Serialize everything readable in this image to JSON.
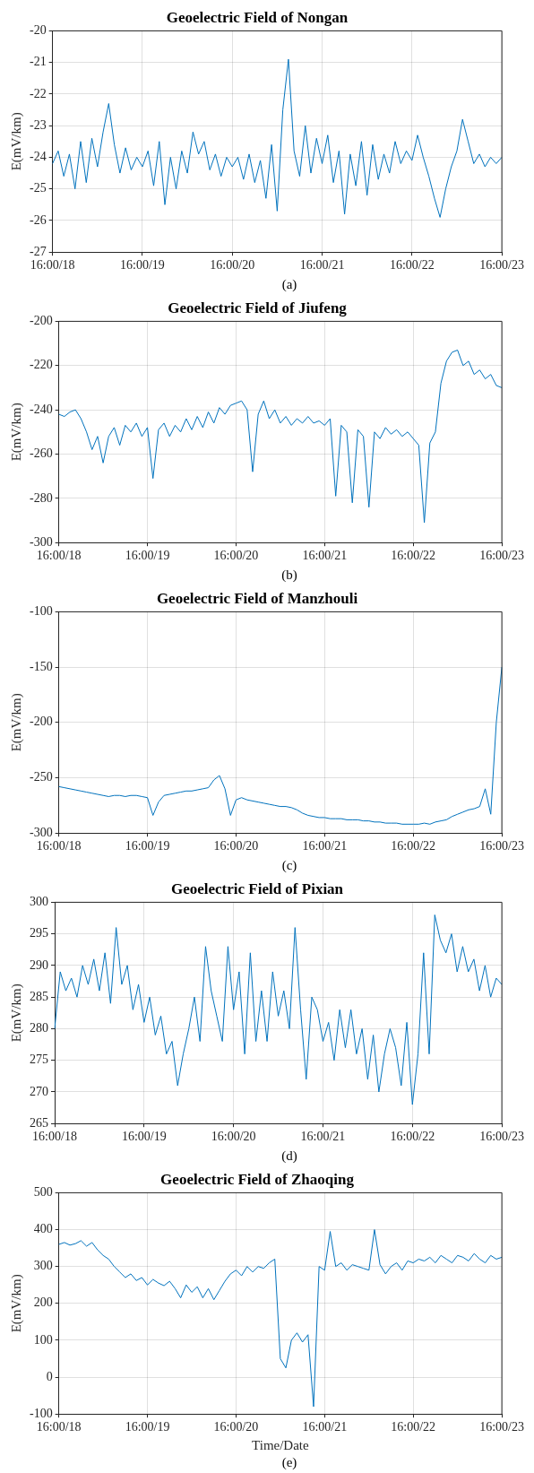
{
  "chart_data": [
    {
      "type": "line",
      "title": "Geoelectric Field of Nongan",
      "ylabel": "E(mV/km)",
      "annotations": [
        "(a)"
      ],
      "grid": true,
      "categories": [
        "16:00/18",
        null,
        null,
        null,
        null,
        null,
        null,
        null,
        null,
        null,
        null,
        null,
        null,
        null,
        null,
        null,
        "16:00/19",
        null,
        null,
        null,
        null,
        null,
        null,
        null,
        null,
        null,
        null,
        null,
        null,
        null,
        null,
        null,
        "16:00/20",
        null,
        null,
        null,
        null,
        null,
        null,
        null,
        null,
        null,
        null,
        null,
        null,
        null,
        null,
        null,
        "16:00/21",
        null,
        null,
        null,
        null,
        null,
        null,
        null,
        null,
        null,
        null,
        null,
        null,
        null,
        null,
        null,
        "16:00/22",
        null,
        null,
        null,
        null,
        null,
        null,
        null,
        null,
        null,
        null,
        null,
        null,
        null,
        null,
        null,
        "16:00/23"
      ],
      "ylim": [
        -27,
        -20
      ],
      "yticks": [
        -27,
        -26,
        -25,
        -24,
        -23,
        -22,
        -21,
        -20
      ],
      "series": [
        {
          "color": "#0072bd",
          "values": [
            -24.2,
            -23.8,
            -24.6,
            -23.9,
            -25.0,
            -23.5,
            -24.8,
            -23.4,
            -24.3,
            -23.2,
            -22.3,
            -23.6,
            -24.5,
            -23.7,
            -24.4,
            -24.0,
            -24.3,
            -23.8,
            -24.9,
            -23.5,
            -25.5,
            -24.0,
            -25.0,
            -23.8,
            -24.5,
            -23.2,
            -23.9,
            -23.5,
            -24.4,
            -23.9,
            -24.6,
            -24.0,
            -24.3,
            -24.0,
            -24.7,
            -23.9,
            -24.8,
            -24.1,
            -25.3,
            -23.6,
            -25.7,
            -22.5,
            -20.9,
            -23.8,
            -24.6,
            -23.0,
            -24.5,
            -23.4,
            -24.2,
            -23.3,
            -24.8,
            -23.8,
            -25.8,
            -23.9,
            -24.9,
            -23.5,
            -25.2,
            -23.6,
            -24.7,
            -23.9,
            -24.5,
            -23.5,
            -24.2,
            -23.8,
            -24.1,
            -23.3,
            -24.0,
            -24.6,
            -25.3,
            -25.9,
            -25.0,
            -24.3,
            -23.8,
            -22.8,
            -23.5,
            -24.2,
            -23.9,
            -24.3,
            -24.0,
            -24.2,
            -24.0
          ]
        }
      ]
    },
    {
      "type": "line",
      "title": "Geoelectric Field of Jiufeng",
      "ylabel": "E(mV/km)",
      "annotations": [
        "(b)"
      ],
      "grid": true,
      "categories": [
        "16:00/18",
        null,
        null,
        null,
        null,
        null,
        null,
        null,
        null,
        null,
        null,
        null,
        null,
        null,
        null,
        null,
        "16:00/19",
        null,
        null,
        null,
        null,
        null,
        null,
        null,
        null,
        null,
        null,
        null,
        null,
        null,
        null,
        null,
        "16:00/20",
        null,
        null,
        null,
        null,
        null,
        null,
        null,
        null,
        null,
        null,
        null,
        null,
        null,
        null,
        null,
        "16:00/21",
        null,
        null,
        null,
        null,
        null,
        null,
        null,
        null,
        null,
        null,
        null,
        null,
        null,
        null,
        null,
        "16:00/22",
        null,
        null,
        null,
        null,
        null,
        null,
        null,
        null,
        null,
        null,
        null,
        null,
        null,
        null,
        null,
        "16:00/23"
      ],
      "ylim": [
        -300,
        -200
      ],
      "yticks": [
        -300,
        -280,
        -260,
        -240,
        -220,
        -200
      ],
      "series": [
        {
          "color": "#0072bd",
          "values": [
            -242,
            -243,
            -241,
            -240,
            -244,
            -250,
            -258,
            -252,
            -264,
            -252,
            -248,
            -256,
            -247,
            -250,
            -246,
            -252,
            -248,
            -271,
            -249,
            -246,
            -252,
            -247,
            -250,
            -244,
            -249,
            -243,
            -248,
            -241,
            -246,
            -239,
            -242,
            -238,
            -237,
            -236,
            -240,
            -268,
            -242,
            -236,
            -244,
            -240,
            -246,
            -243,
            -247,
            -244,
            -246,
            -243,
            -246,
            -245,
            -247,
            -244,
            -279,
            -247,
            -250,
            -282,
            -249,
            -252,
            -284,
            -250,
            -253,
            -248,
            -251,
            -249,
            -252,
            -250,
            -253,
            -256,
            -291,
            -255,
            -250,
            -228,
            -218,
            -214,
            -213,
            -220,
            -218,
            -224,
            -222,
            -226,
            -224,
            -229,
            -230
          ]
        }
      ]
    },
    {
      "type": "line",
      "title": "Geoelectric Field of Manzhouli",
      "ylabel": "E(mV/km)",
      "annotations": [
        "(c)"
      ],
      "grid": true,
      "categories": [
        "16:00/18",
        null,
        null,
        null,
        null,
        null,
        null,
        null,
        null,
        null,
        null,
        null,
        null,
        null,
        null,
        null,
        "16:00/19",
        null,
        null,
        null,
        null,
        null,
        null,
        null,
        null,
        null,
        null,
        null,
        null,
        null,
        null,
        null,
        "16:00/20",
        null,
        null,
        null,
        null,
        null,
        null,
        null,
        null,
        null,
        null,
        null,
        null,
        null,
        null,
        null,
        "16:00/21",
        null,
        null,
        null,
        null,
        null,
        null,
        null,
        null,
        null,
        null,
        null,
        null,
        null,
        null,
        null,
        "16:00/22",
        null,
        null,
        null,
        null,
        null,
        null,
        null,
        null,
        null,
        null,
        null,
        null,
        null,
        null,
        null,
        "16:00/23"
      ],
      "ylim": [
        -300,
        -100
      ],
      "yticks": [
        -300,
        -250,
        -200,
        -150,
        -100
      ],
      "series": [
        {
          "color": "#0072bd",
          "values": [
            -258,
            -259,
            -260,
            -261,
            -262,
            -263,
            -264,
            -265,
            -266,
            -267,
            -266,
            -266,
            -267,
            -266,
            -266,
            -267,
            -268,
            -284,
            -272,
            -266,
            -265,
            -264,
            -263,
            -262,
            -262,
            -261,
            -260,
            -259,
            -252,
            -248,
            -260,
            -284,
            -270,
            -268,
            -270,
            -271,
            -272,
            -273,
            -274,
            -275,
            -276,
            -276,
            -277,
            -279,
            -282,
            -284,
            -285,
            -286,
            -286,
            -287,
            -287,
            -287,
            -288,
            -288,
            -288,
            -289,
            -289,
            -290,
            -290,
            -291,
            -291,
            -291,
            -292,
            -292,
            -292,
            -292,
            -291,
            -292,
            -290,
            -289,
            -288,
            -285,
            -283,
            -281,
            -279,
            -278,
            -276,
            -260,
            -283,
            -200,
            -150
          ]
        }
      ]
    },
    {
      "type": "line",
      "title": "Geoelectric Field of Pixian",
      "ylabel": "E(mV/km)",
      "annotations": [
        "(d)"
      ],
      "grid": true,
      "categories": [
        "16:00/18",
        null,
        null,
        null,
        null,
        null,
        null,
        null,
        null,
        null,
        null,
        null,
        null,
        null,
        null,
        null,
        "16:00/19",
        null,
        null,
        null,
        null,
        null,
        null,
        null,
        null,
        null,
        null,
        null,
        null,
        null,
        null,
        null,
        "16:00/20",
        null,
        null,
        null,
        null,
        null,
        null,
        null,
        null,
        null,
        null,
        null,
        null,
        null,
        null,
        null,
        "16:00/21",
        null,
        null,
        null,
        null,
        null,
        null,
        null,
        null,
        null,
        null,
        null,
        null,
        null,
        null,
        null,
        "16:00/22",
        null,
        null,
        null,
        null,
        null,
        null,
        null,
        null,
        null,
        null,
        null,
        null,
        null,
        null,
        null,
        "16:00/23"
      ],
      "ylim": [
        265,
        300
      ],
      "yticks": [
        265,
        270,
        275,
        280,
        285,
        290,
        295,
        300
      ],
      "series": [
        {
          "color": "#0072bd",
          "values": [
            280,
            289,
            286,
            288,
            285,
            290,
            287,
            291,
            286,
            292,
            284,
            296,
            287,
            290,
            283,
            287,
            281,
            285,
            279,
            282,
            276,
            278,
            271,
            276,
            280,
            285,
            278,
            293,
            286,
            282,
            278,
            293,
            283,
            289,
            276,
            292,
            278,
            286,
            278,
            289,
            282,
            286,
            280,
            296,
            283,
            272,
            285,
            283,
            278,
            281,
            275,
            283,
            277,
            283,
            276,
            280,
            272,
            279,
            270,
            276,
            280,
            277,
            271,
            281,
            268,
            276,
            292,
            276,
            298,
            294,
            292,
            295,
            289,
            293,
            289,
            291,
            286,
            290,
            285,
            288,
            287
          ]
        }
      ]
    },
    {
      "type": "line",
      "title": "Geoelectric Field of Zhaoqing",
      "ylabel": "E(mV/km)",
      "xlabel": "Time/Date",
      "annotations": [
        "(e)"
      ],
      "grid": true,
      "categories": [
        "16:00/18",
        null,
        null,
        null,
        null,
        null,
        null,
        null,
        null,
        null,
        null,
        null,
        null,
        null,
        null,
        null,
        "16:00/19",
        null,
        null,
        null,
        null,
        null,
        null,
        null,
        null,
        null,
        null,
        null,
        null,
        null,
        null,
        null,
        "16:00/20",
        null,
        null,
        null,
        null,
        null,
        null,
        null,
        null,
        null,
        null,
        null,
        null,
        null,
        null,
        null,
        "16:00/21",
        null,
        null,
        null,
        null,
        null,
        null,
        null,
        null,
        null,
        null,
        null,
        null,
        null,
        null,
        null,
        "16:00/22",
        null,
        null,
        null,
        null,
        null,
        null,
        null,
        null,
        null,
        null,
        null,
        null,
        null,
        null,
        null,
        "16:00/23"
      ],
      "ylim": [
        -100,
        500
      ],
      "yticks": [
        -100,
        0,
        100,
        200,
        300,
        400,
        500
      ],
      "series": [
        {
          "color": "#0072bd",
          "values": [
            360,
            365,
            358,
            362,
            370,
            355,
            365,
            345,
            330,
            320,
            300,
            285,
            270,
            280,
            262,
            270,
            250,
            265,
            255,
            248,
            260,
            240,
            215,
            250,
            230,
            245,
            215,
            240,
            210,
            235,
            260,
            280,
            290,
            275,
            300,
            285,
            300,
            295,
            310,
            320,
            50,
            25,
            100,
            120,
            95,
            115,
            -80,
            300,
            290,
            395,
            300,
            310,
            290,
            305,
            300,
            295,
            290,
            400,
            305,
            280,
            300,
            310,
            290,
            315,
            310,
            320,
            315,
            325,
            310,
            330,
            320,
            310,
            330,
            325,
            315,
            335,
            320,
            310,
            330,
            320,
            325
          ]
        }
      ]
    }
  ]
}
